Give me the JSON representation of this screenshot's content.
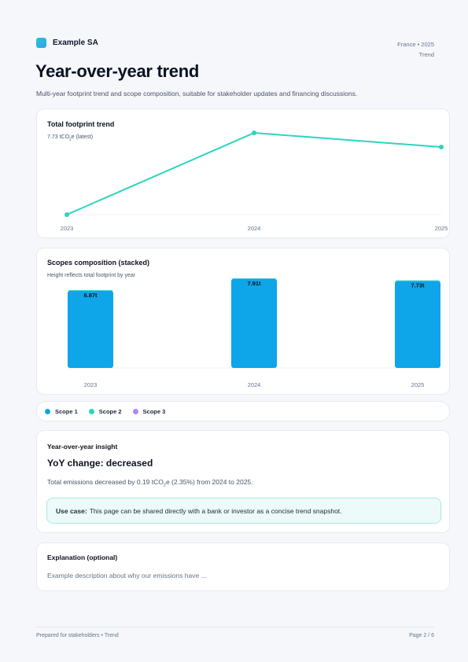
{
  "header": {
    "company": "Example SA",
    "meta_line1": "France • 2025",
    "meta_line2": "Trend"
  },
  "page": {
    "title": "Year-over-year trend",
    "subtitle": "Multi-year footprint trend and scope composition, suitable for stakeholder updates and financing discussions."
  },
  "trend_card": {
    "title": "Total footprint trend",
    "latest_prefix": "7.73 tCO",
    "latest_sub": "2",
    "latest_suffix": "e (latest)"
  },
  "scopes_card": {
    "title": "Scopes composition (stacked)",
    "subtitle": "Height reflects total footprint by year"
  },
  "legend": [
    {
      "label": "Scope 1",
      "color": "#0ea5e9"
    },
    {
      "label": "Scope 2",
      "color": "#2dd4bf"
    },
    {
      "label": "Scope 3",
      "color": "#a78bfa"
    }
  ],
  "insight": {
    "heading": "Year-over-year insight",
    "change": "YoY change: decreased",
    "text_prefix": "Total emissions decreased by 0.19 tCO",
    "text_sub": "2",
    "text_suffix": "e (2.35%) from 2024 to 2025.",
    "usecase_label": "Use case:",
    "usecase_text": "This page can be shared directly with a bank or investor as a concise trend snapshot."
  },
  "explanation": {
    "title": "Explanation (optional)",
    "text": "Example description about why our emissions have ..."
  },
  "footer": {
    "left": "Prepared for stakeholders • Trend",
    "right": "Page 2 / 6"
  },
  "chart_data": [
    {
      "type": "line",
      "title": "Total footprint trend",
      "x": [
        "2023",
        "2024",
        "2025"
      ],
      "series": [
        {
          "values": [
            6.87,
            7.91,
            7.73
          ],
          "color": "#2dd4bf"
        }
      ]
    },
    {
      "type": "bar",
      "stacked": true,
      "title": "Scopes composition (stacked)",
      "categories": [
        "2023",
        "2024",
        "2025"
      ],
      "totals": [
        6.87,
        7.91,
        7.73
      ],
      "total_labels": [
        "6.87t",
        "7.91t",
        "7.73t"
      ],
      "series": [
        {
          "name": "Scope 1",
          "color": "#0ea5e9",
          "values": [
            6.82,
            7.87,
            7.68
          ]
        },
        {
          "name": "Scope 2",
          "color": "#2dd4bf",
          "values": [
            0.05,
            0.04,
            0.05
          ]
        },
        {
          "name": "Scope 3",
          "color": "#a78bfa",
          "values": [
            0,
            0,
            0
          ]
        }
      ]
    }
  ]
}
